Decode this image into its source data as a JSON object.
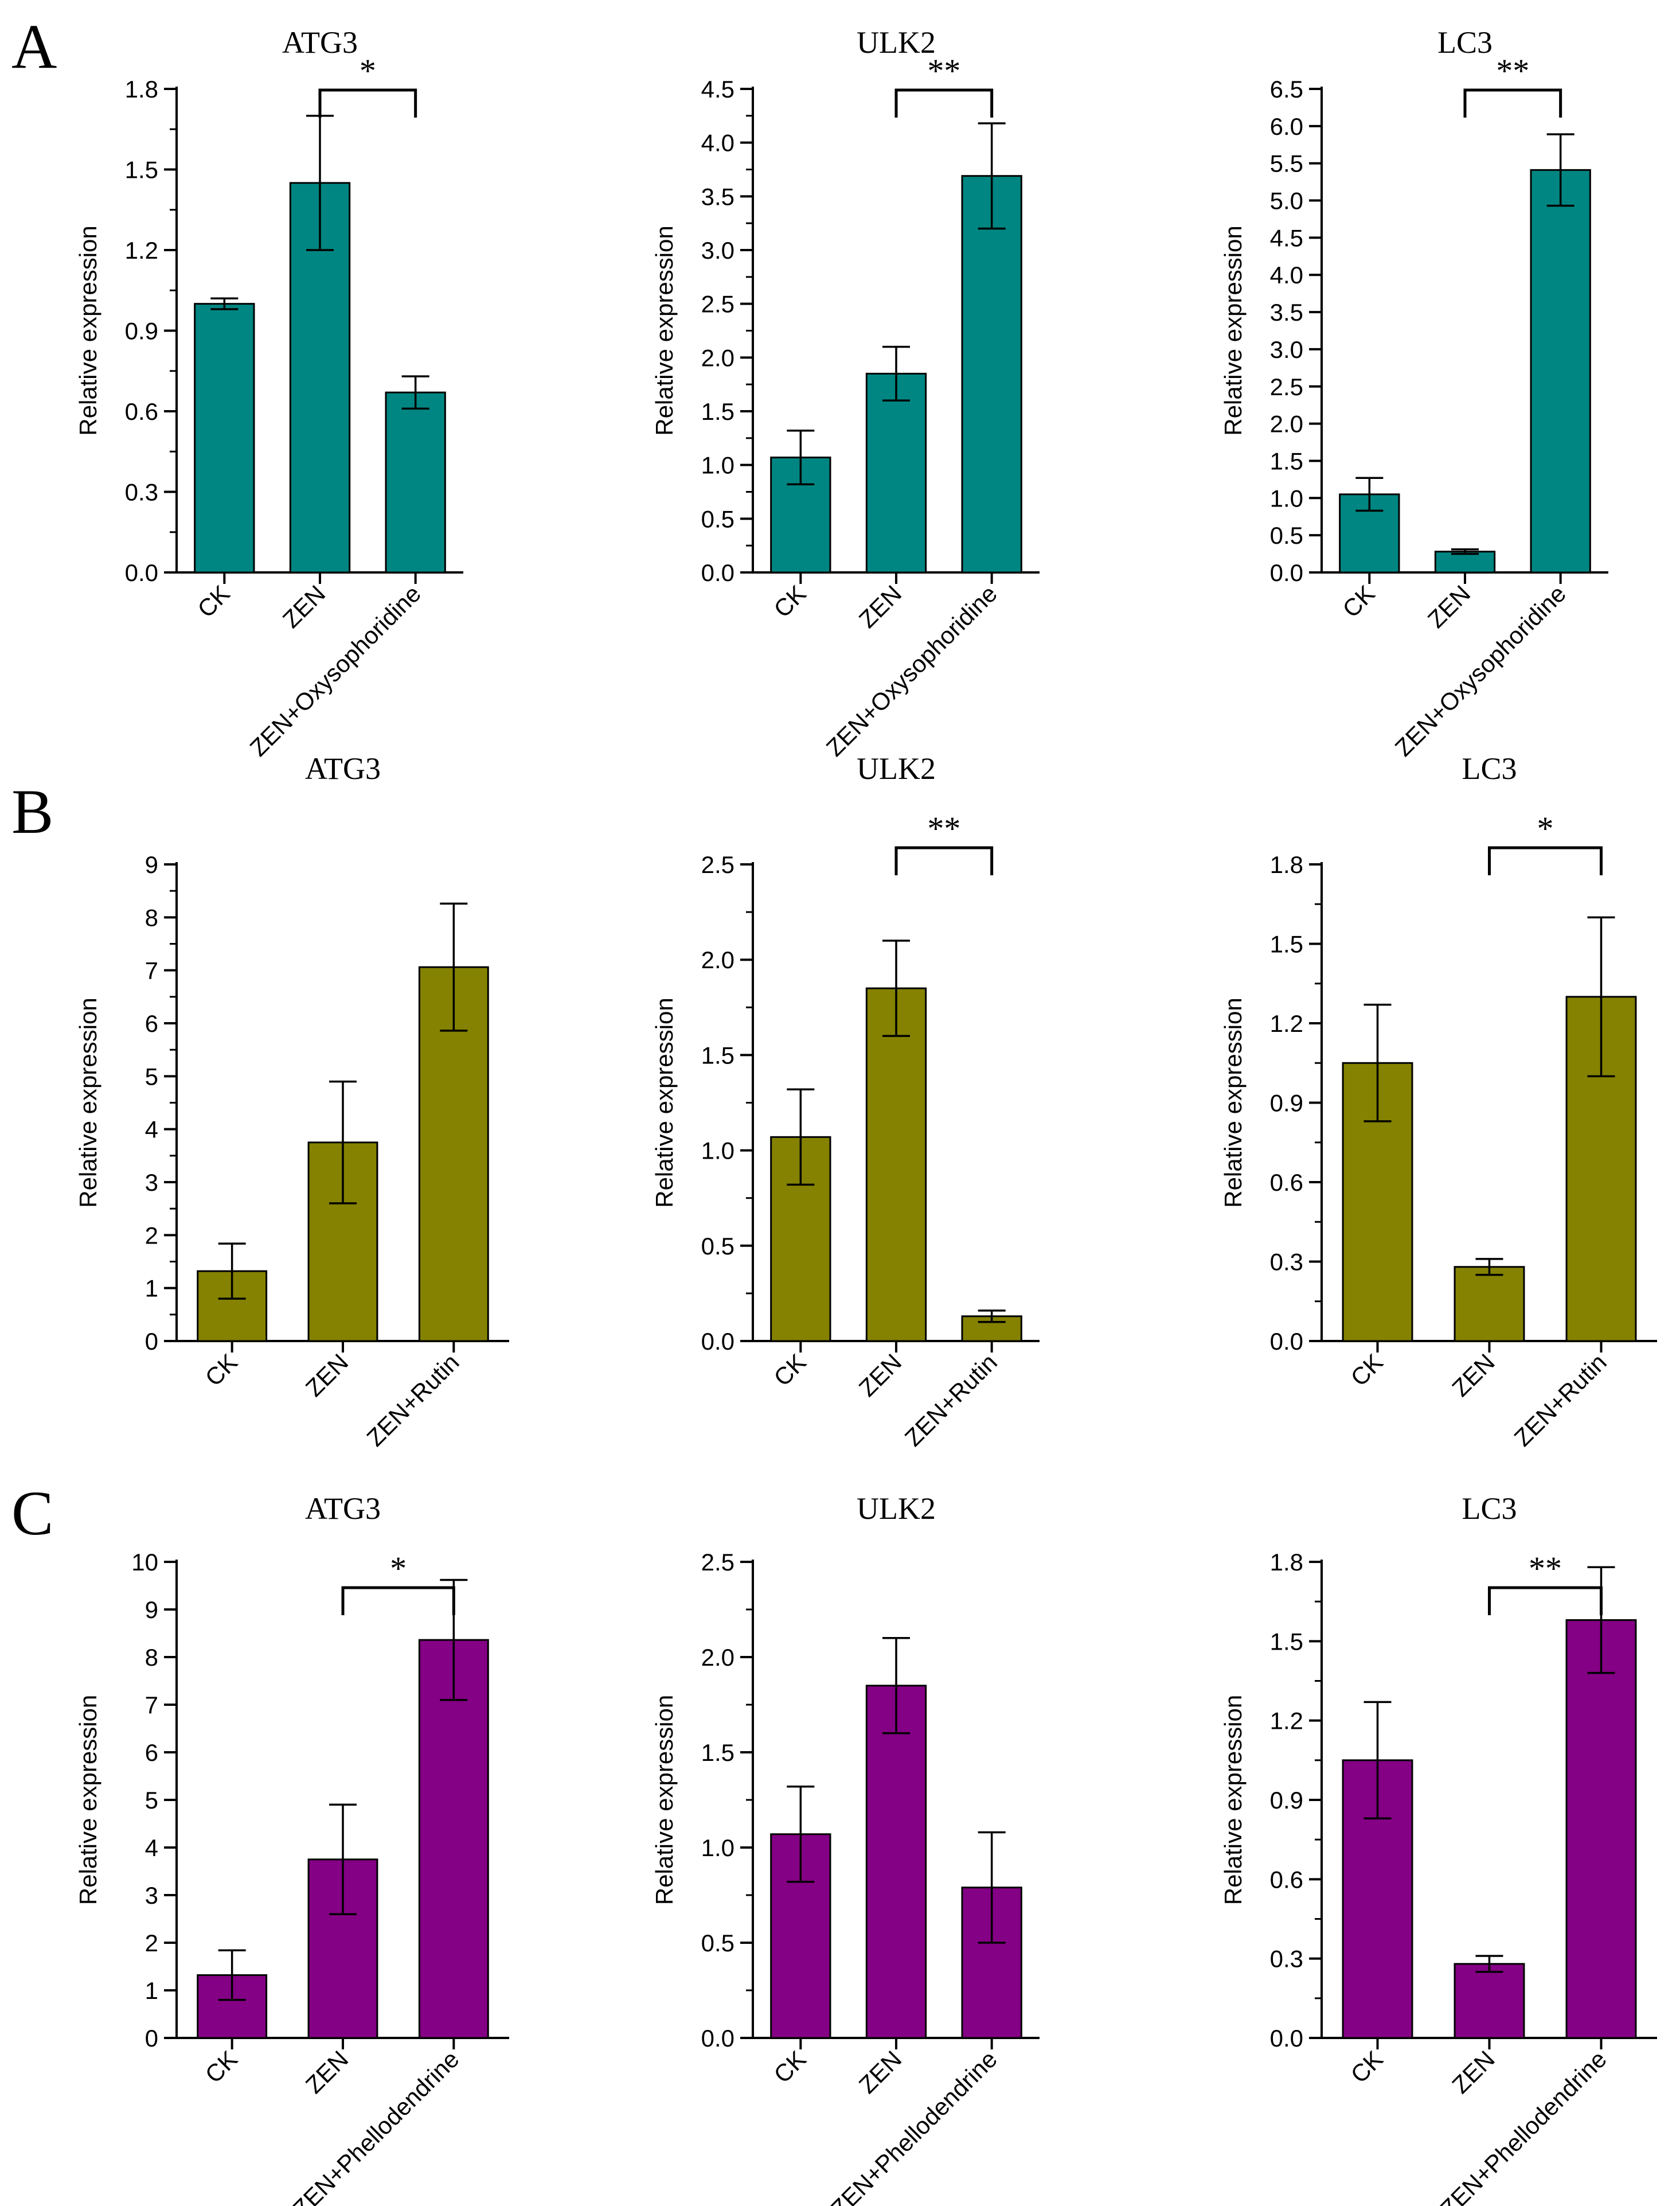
{
  "figure": {
    "panel_labels": [
      "A",
      "B",
      "C"
    ]
  },
  "colors": {
    "A": "#008682",
    "B": "#848200",
    "C": "#840084",
    "axis": "#000000"
  },
  "chart_data": [
    {
      "panel": "A",
      "type": "bar",
      "title": "ATG3",
      "ylabel": "Relative expression",
      "categories": [
        "CK",
        "ZEN",
        "ZEN+Oxysophoridine"
      ],
      "values": [
        1.0,
        1.45,
        0.67
      ],
      "errors": [
        0.02,
        0.25,
        0.06
      ],
      "ylim": [
        0,
        1.8
      ],
      "yticks": [
        "0.0",
        "0.3",
        "0.6",
        "0.9",
        "1.2",
        "1.5",
        "1.8"
      ],
      "minor_ticks": true,
      "significance": {
        "from": 1,
        "to": 2,
        "label": "*"
      }
    },
    {
      "panel": "A",
      "type": "bar",
      "title": "ULK2",
      "ylabel": "Relative expression",
      "categories": [
        "CK",
        "ZEN",
        "ZEN+Oxysophoridine"
      ],
      "values": [
        1.07,
        1.85,
        3.69
      ],
      "errors": [
        0.25,
        0.25,
        0.49
      ],
      "ylim": [
        0,
        4.5
      ],
      "yticks": [
        "0.0",
        "0.5",
        "1.0",
        "1.5",
        "2.0",
        "2.5",
        "3.0",
        "3.5",
        "4.0",
        "4.5"
      ],
      "minor_ticks": true,
      "significance": {
        "from": 1,
        "to": 2,
        "label": "**"
      }
    },
    {
      "panel": "A",
      "type": "bar",
      "title": "LC3",
      "ylabel": "Relative expression",
      "categories": [
        "CK",
        "ZEN",
        "ZEN+Oxysophoridine"
      ],
      "values": [
        1.05,
        0.28,
        5.41
      ],
      "errors": [
        0.22,
        0.03,
        0.48
      ],
      "ylim": [
        0,
        6.5
      ],
      "yticks": [
        "0.0",
        "0.5",
        "1.0",
        "1.5",
        "2.0",
        "2.5",
        "3.0",
        "3.5",
        "4.0",
        "4.5",
        "5.0",
        "5.5",
        "6.0",
        "6.5"
      ],
      "minor_ticks": false,
      "significance": {
        "from": 1,
        "to": 2,
        "label": "**"
      }
    },
    {
      "panel": "B",
      "type": "bar",
      "title": "ATG3",
      "ylabel": "Relative expression",
      "categories": [
        "CK",
        "ZEN",
        "ZEN+Rutin"
      ],
      "values": [
        1.32,
        3.75,
        7.06
      ],
      "errors": [
        0.52,
        1.15,
        1.2
      ],
      "ylim": [
        0,
        9
      ],
      "yticks": [
        "0",
        "1",
        "2",
        "3",
        "4",
        "5",
        "6",
        "7",
        "8",
        "9"
      ],
      "minor_ticks": true,
      "significance": null
    },
    {
      "panel": "B",
      "type": "bar",
      "title": "ULK2",
      "ylabel": "Relative expression",
      "categories": [
        "CK",
        "ZEN",
        "ZEN+Rutin"
      ],
      "values": [
        1.07,
        1.85,
        0.13
      ],
      "errors": [
        0.25,
        0.25,
        0.03
      ],
      "ylim": [
        0,
        2.5
      ],
      "yticks": [
        "0.0",
        "0.5",
        "1.0",
        "1.5",
        "2.0",
        "2.5"
      ],
      "minor_ticks": true,
      "significance": {
        "from": 1,
        "to": 2,
        "label": "**"
      }
    },
    {
      "panel": "B",
      "type": "bar",
      "title": "LC3",
      "ylabel": "Relative expression",
      "categories": [
        "CK",
        "ZEN",
        "ZEN+Rutin"
      ],
      "values": [
        1.05,
        0.28,
        1.3
      ],
      "errors": [
        0.22,
        0.03,
        0.3
      ],
      "ylim": [
        0,
        1.8
      ],
      "yticks": [
        "0.0",
        "0.3",
        "0.6",
        "0.9",
        "1.2",
        "1.5",
        "1.8"
      ],
      "minor_ticks": true,
      "significance": {
        "from": 1,
        "to": 2,
        "label": "*"
      }
    },
    {
      "panel": "C",
      "type": "bar",
      "title": "ATG3",
      "ylabel": "Relative expression",
      "categories": [
        "CK",
        "ZEN",
        "ZEN+Phellodendrine"
      ],
      "values": [
        1.32,
        3.75,
        8.36
      ],
      "errors": [
        0.52,
        1.15,
        1.26
      ],
      "ylim": [
        0,
        10
      ],
      "yticks": [
        "0",
        "1",
        "2",
        "3",
        "4",
        "5",
        "6",
        "7",
        "8",
        "9",
        "10"
      ],
      "minor_ticks": false,
      "significance": {
        "from": 1,
        "to": 2,
        "label": "*"
      }
    },
    {
      "panel": "C",
      "type": "bar",
      "title": "ULK2",
      "ylabel": "Relative expression",
      "categories": [
        "CK",
        "ZEN",
        "ZEN+Phellodendrine"
      ],
      "values": [
        1.07,
        1.85,
        0.79
      ],
      "errors": [
        0.25,
        0.25,
        0.29
      ],
      "ylim": [
        0,
        2.5
      ],
      "yticks": [
        "0.0",
        "0.5",
        "1.0",
        "1.5",
        "2.0",
        "2.5"
      ],
      "minor_ticks": true,
      "significance": null
    },
    {
      "panel": "C",
      "type": "bar",
      "title": "LC3",
      "ylabel": "Relative expression",
      "categories": [
        "CK",
        "ZEN",
        "ZEN+Phellodendrine"
      ],
      "values": [
        1.05,
        0.28,
        1.58
      ],
      "errors": [
        0.22,
        0.03,
        0.2
      ],
      "ylim": [
        0,
        1.8
      ],
      "yticks": [
        "0.0",
        "0.3",
        "0.6",
        "0.9",
        "1.2",
        "1.5",
        "1.8"
      ],
      "minor_ticks": true,
      "significance": {
        "from": 1,
        "to": 2,
        "label": "**"
      }
    }
  ]
}
